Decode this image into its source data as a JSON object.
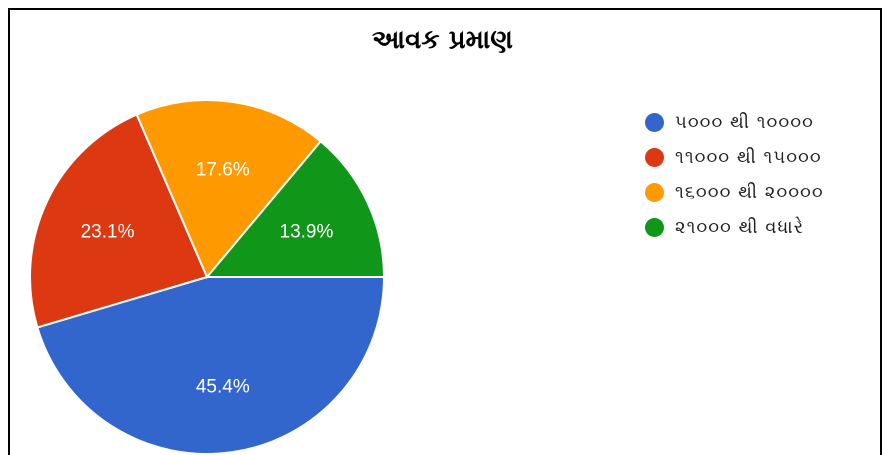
{
  "chart_data": {
    "type": "pie",
    "title": "આવક પ્રમાણ",
    "categories": [
      "૫૦૦૦ થી ૧૦૦૦૦",
      "૧૧૦૦૦ થી ૧૫૦૦૦",
      "૧૬૦૦૦ થી ૨૦૦૦૦",
      "૨૧૦૦૦ થી વધારે"
    ],
    "values": [
      45.4,
      23.1,
      17.6,
      13.9
    ],
    "labels": [
      "45.4%",
      "23.1%",
      "17.6%",
      "13.9%"
    ],
    "colors": [
      "#3366cc",
      "#dc3912",
      "#ff9900",
      "#109618"
    ],
    "legend_position": "right"
  }
}
